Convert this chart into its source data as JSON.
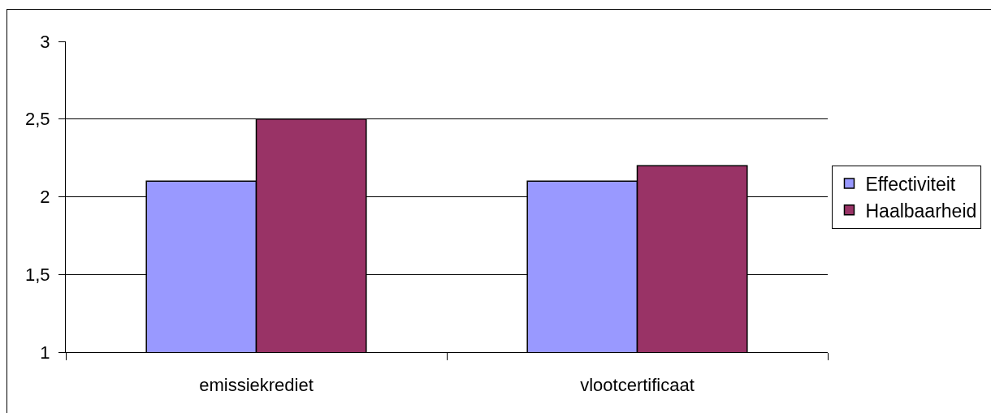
{
  "chart_data": {
    "type": "bar",
    "categories": [
      "emissiekrediet",
      "vlootcertificaat"
    ],
    "series": [
      {
        "name": "Effectiviteit",
        "color": "#9999ff",
        "values": [
          2.1,
          2.1
        ]
      },
      {
        "name": "Haalbaarheid",
        "color": "#993366",
        "values": [
          2.5,
          2.2
        ]
      }
    ],
    "ylim": [
      1,
      3
    ],
    "yticks": [
      1,
      {
        "value": 1.5,
        "label": "1,5"
      },
      2,
      {
        "value": 2.5,
        "label": "2,5"
      },
      3
    ],
    "grid": "y",
    "legend": "right"
  }
}
